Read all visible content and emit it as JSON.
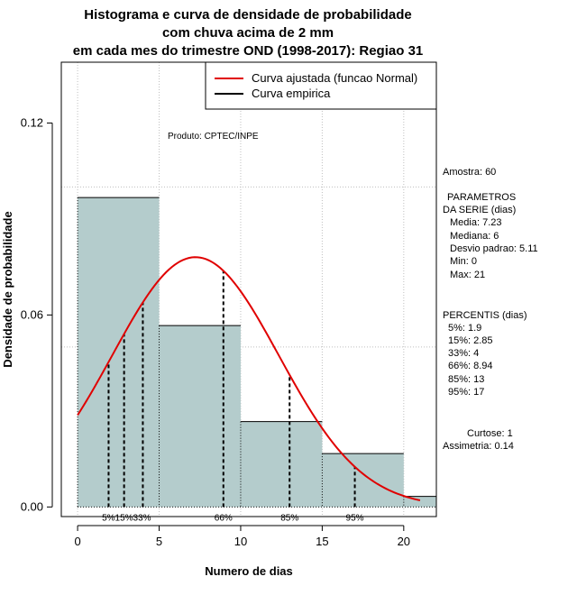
{
  "chart_data": {
    "type": "bar",
    "title_lines": [
      "Histograma e curva de densidade de probabilidade",
      "com chuva acima de 2 mm",
      "em cada mes do trimestre OND (1998-2017): Regiao 31"
    ],
    "xlabel": "Numero de dias",
    "ylabel": "Densidade de probabilidade",
    "xlim": [
      -1,
      22
    ],
    "ylim": [
      -0.003,
      0.139
    ],
    "x_ticks": [
      0,
      5,
      10,
      15,
      20
    ],
    "y_ticks": [
      0.0,
      0.06,
      0.12
    ],
    "y_tick_labels": [
      "0.00",
      "0.06",
      "0.12"
    ],
    "grid_x": [
      0,
      5,
      10,
      15,
      20
    ],
    "grid_y": [
      0.05,
      0.1
    ],
    "bins": [
      {
        "start": 0,
        "end": 5,
        "density": 0.0967
      },
      {
        "start": 5,
        "end": 10,
        "density": 0.0567
      },
      {
        "start": 10,
        "end": 15,
        "density": 0.0267
      },
      {
        "start": 15,
        "end": 20,
        "density": 0.0167
      },
      {
        "start": 20,
        "end": 22,
        "density": 0.0033
      }
    ],
    "normal_curve": {
      "mean": 7.23,
      "sd": 5.11,
      "x_start": 0,
      "x_end": 21,
      "color": "#e00000"
    },
    "percentile_lines": [
      {
        "label": "5%",
        "x": 1.9
      },
      {
        "label": "15%",
        "x": 2.85
      },
      {
        "label": "33%",
        "x": 4
      },
      {
        "label": "66%",
        "x": 8.94
      },
      {
        "label": "85%",
        "x": 13
      },
      {
        "label": "95%",
        "x": 17
      }
    ],
    "percentile_bottom_labels": [
      {
        "text": "5%15%33%",
        "x": 3
      },
      {
        "text": "66%",
        "x": 8.94
      },
      {
        "text": "85%",
        "x": 13
      },
      {
        "text": "95%",
        "x": 17
      }
    ],
    "legend": {
      "position": "top-right",
      "entries": [
        {
          "label": "Curva ajustada (funcao Normal)",
          "color": "#e00000"
        },
        {
          "label": "Curva empirica",
          "color": "#000000"
        }
      ]
    },
    "annotation": "Produto: CPTEC/INPE",
    "colors": {
      "bar_fill": "#b4cccc",
      "bar_stroke": "#000000",
      "grid": "#bfbfbf"
    }
  },
  "side_panel": {
    "amostra": "Amostra: 60",
    "parametros_title": "PARAMETROS",
    "parametros_subtitle": "DA SERIE (dias)",
    "parametros": [
      "Media: 7.23",
      "Mediana: 6",
      "Desvio padrao: 5.11",
      "Min: 0",
      "Max: 21"
    ],
    "percentis_title": "PERCENTIS (dias)",
    "percentis": [
      "5%: 1.9",
      "15%: 2.85",
      "33%: 4",
      "66%: 8.94",
      "85%: 13",
      "95%: 17"
    ],
    "curtose": "Curtose: 1",
    "assimetria": "Assimetria: 0.14"
  }
}
